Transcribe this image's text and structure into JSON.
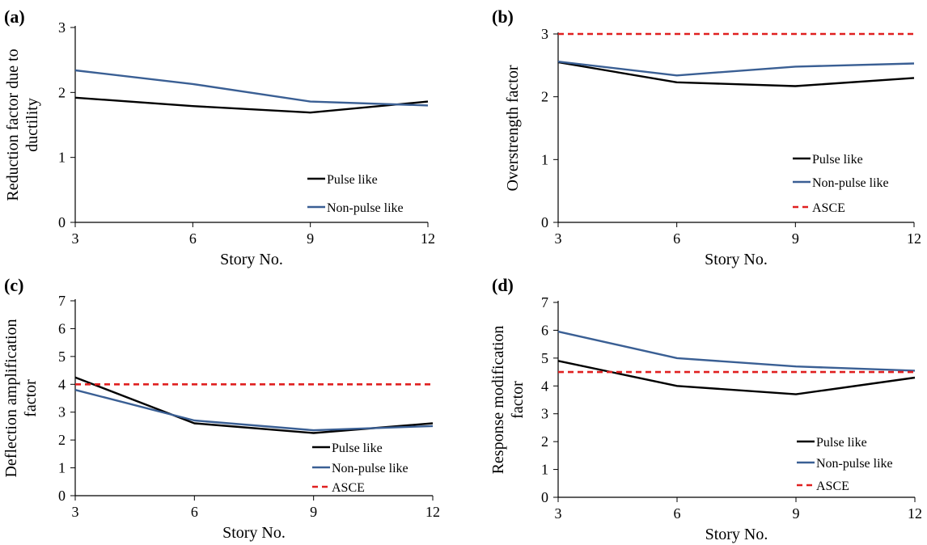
{
  "colors": {
    "pulse": "#000000",
    "non_pulse": "#3A5F94",
    "asce": "#E02020",
    "axis": "#000000"
  },
  "chart_data": [
    {
      "panel": "(a)",
      "type": "line",
      "xlabel": "Story No.",
      "ylabel_lines": [
        "Reduction factor due to",
        "ductility"
      ],
      "x_ticks": [
        "3",
        "6",
        "9",
        "12"
      ],
      "y_ticks": [
        "0",
        "1",
        "2",
        "3"
      ],
      "xlim": [
        3,
        12
      ],
      "ylim": [
        0,
        3
      ],
      "legend_position": "lower-right",
      "series": [
        {
          "name": "Pulse like",
          "x": [
            3,
            6,
            9,
            12
          ],
          "y": [
            1.92,
            1.79,
            1.69,
            1.86
          ],
          "style": "solid",
          "color_key": "pulse"
        },
        {
          "name": "Non-pulse like",
          "x": [
            3,
            6,
            9,
            12
          ],
          "y": [
            2.34,
            2.13,
            1.86,
            1.8
          ],
          "style": "solid",
          "color_key": "non_pulse"
        }
      ]
    },
    {
      "panel": "(b)",
      "type": "line",
      "xlabel": "Story No.",
      "ylabel_lines": [
        "Overstrength factor"
      ],
      "x_ticks": [
        "3",
        "6",
        "9",
        "12"
      ],
      "y_ticks": [
        "0",
        "1",
        "2",
        "3"
      ],
      "xlim": [
        3,
        12
      ],
      "ylim": [
        0,
        3
      ],
      "legend_position": "lower-right",
      "series": [
        {
          "name": "Pulse like",
          "x": [
            3,
            6,
            9,
            12
          ],
          "y": [
            2.55,
            2.23,
            2.17,
            2.3
          ],
          "style": "solid",
          "color_key": "pulse"
        },
        {
          "name": "Non-pulse like",
          "x": [
            3,
            6,
            9,
            12
          ],
          "y": [
            2.56,
            2.34,
            2.48,
            2.53
          ],
          "style": "solid",
          "color_key": "non_pulse"
        },
        {
          "name": "ASCE",
          "x": [
            3,
            12
          ],
          "y": [
            3.0,
            3.0
          ],
          "style": "dashed",
          "color_key": "asce"
        }
      ]
    },
    {
      "panel": "(c)",
      "type": "line",
      "xlabel": "Story No.",
      "ylabel_lines": [
        "Deflection amplification",
        "factor"
      ],
      "x_ticks": [
        "3",
        "6",
        "9",
        "12"
      ],
      "y_ticks": [
        "0",
        "1",
        "2",
        "3",
        "4",
        "5",
        "6",
        "7"
      ],
      "xlim": [
        3,
        12
      ],
      "ylim": [
        0,
        7
      ],
      "legend_position": "lower-right",
      "series": [
        {
          "name": "Pulse like",
          "x": [
            3,
            6,
            9,
            12
          ],
          "y": [
            4.25,
            2.6,
            2.25,
            2.6
          ],
          "style": "solid",
          "color_key": "pulse"
        },
        {
          "name": "Non-pulse like",
          "x": [
            3,
            6,
            9,
            12
          ],
          "y": [
            3.8,
            2.7,
            2.35,
            2.5
          ],
          "style": "solid",
          "color_key": "non_pulse"
        },
        {
          "name": "ASCE",
          "x": [
            3,
            12
          ],
          "y": [
            4.0,
            4.0
          ],
          "style": "dashed",
          "color_key": "asce"
        }
      ]
    },
    {
      "panel": "(d)",
      "type": "line",
      "xlabel": "Story No.",
      "ylabel_lines": [
        "Response modification",
        "factor"
      ],
      "x_ticks": [
        "3",
        "6",
        "9",
        "12"
      ],
      "y_ticks": [
        "0",
        "1",
        "2",
        "3",
        "4",
        "5",
        "6",
        "7"
      ],
      "xlim": [
        3,
        12
      ],
      "ylim": [
        0,
        7
      ],
      "legend_position": "lower-right",
      "series": [
        {
          "name": "Pulse like",
          "x": [
            3,
            6,
            9,
            12
          ],
          "y": [
            4.9,
            4.0,
            3.7,
            4.3
          ],
          "style": "solid",
          "color_key": "pulse"
        },
        {
          "name": "Non-pulse like",
          "x": [
            3,
            6,
            9,
            12
          ],
          "y": [
            5.95,
            5.0,
            4.7,
            4.55
          ],
          "style": "solid",
          "color_key": "non_pulse"
        },
        {
          "name": "ASCE",
          "x": [
            3,
            12
          ],
          "y": [
            4.5,
            4.5
          ],
          "style": "dashed",
          "color_key": "asce"
        }
      ]
    }
  ]
}
